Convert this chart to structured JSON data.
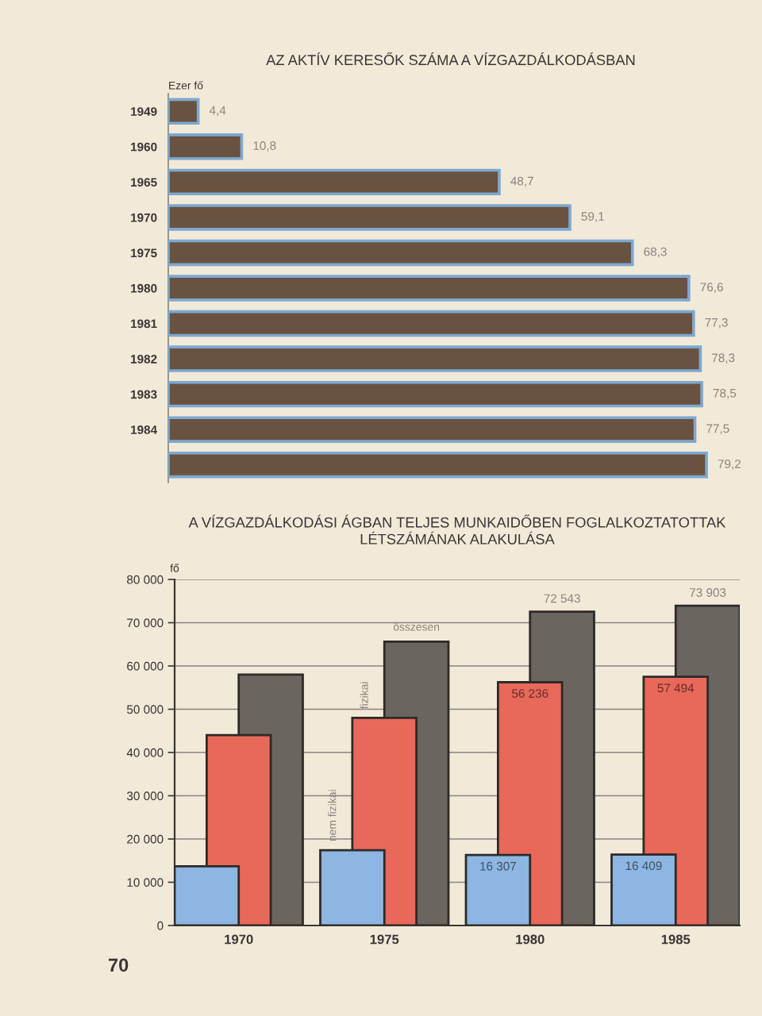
{
  "chart_data": [
    {
      "type": "bar",
      "orientation": "horizontal",
      "title": "AZ AKTÍV KERESŐK SZÁMA A VÍZGAZDÁLKODÁSBAN",
      "xlabel": "Ezer fő",
      "categories": [
        "1949",
        "1960",
        "1965",
        "1970",
        "1975",
        "1980",
        "1981",
        "1982",
        "1983",
        "1984",
        null
      ],
      "values": [
        4.4,
        10.8,
        48.7,
        59.1,
        68.3,
        76.6,
        77.3,
        78.3,
        78.5,
        77.5,
        79.2
      ],
      "value_labels": [
        "4,4",
        "10,8",
        "48,7",
        "59,1",
        "68,3",
        "76,6",
        "77,3",
        "78,3",
        "78,5",
        "77,5",
        "79,2"
      ],
      "color": "#6a5240",
      "tick_labels": "y"
    },
    {
      "type": "bar",
      "title": "A VÍZGAZDÁLKODÁSI ÁGBAN TELJES MUNKAIDŐBEN FOGLALKOZTATOTTAK\nLÉTSZÁMÁNAK ALAKULÁSA",
      "ylabel": "fő",
      "categories": [
        "1970",
        "1975",
        "1980",
        "1985"
      ],
      "series": [
        {
          "name": "nem fizikai",
          "color": "#8db6e2",
          "values": [
            13700,
            17400,
            16307,
            16409
          ],
          "value_labels": [
            null,
            null,
            "16 307",
            "16 409"
          ]
        },
        {
          "name": "fizikai",
          "color": "#e8685a",
          "values": [
            44000,
            48000,
            56236,
            57494
          ],
          "value_labels": [
            null,
            null,
            "56 236",
            "57 494"
          ]
        },
        {
          "name": "összesen",
          "color": "#6b6560",
          "values": [
            58000,
            65600,
            72543,
            73903
          ],
          "value_labels": [
            null,
            null,
            "72 543",
            "73 903"
          ]
        }
      ],
      "ylim": [
        0,
        80000
      ],
      "yticks": [
        0,
        {
          "value": 10000,
          "label": "10 000"
        },
        {
          "value": 20000,
          "label": "20 000"
        },
        {
          "value": 30000,
          "label": "30 000"
        },
        {
          "value": 40000,
          "label": "40 000"
        },
        {
          "value": 50000,
          "label": "50 000"
        },
        {
          "value": 60000,
          "label": "60 000"
        },
        {
          "value": 70000,
          "label": "70 000"
        },
        {
          "value": 80000,
          "label": "80 000"
        }
      ],
      "grid": "y",
      "annotations": [
        "70"
      ]
    }
  ]
}
